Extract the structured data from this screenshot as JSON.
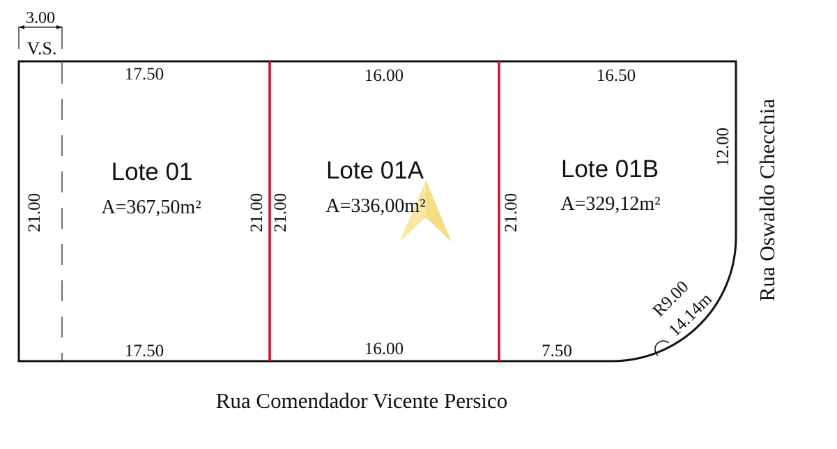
{
  "setback": {
    "width_label": "3.00",
    "label": "V.S."
  },
  "lots": [
    {
      "name": "Lote 01",
      "area": "A=367,50m²",
      "front": "17.50",
      "back": "17.50",
      "left_side": "21.00",
      "right_side": "21.00"
    },
    {
      "name": "Lote 01A",
      "area": "A=336,00m²",
      "front": "16.00",
      "back": "16.00",
      "left_side": "21.00",
      "right_side": "21.00"
    },
    {
      "name": "Lote 01B",
      "area": "A=329,12m²",
      "front": "16.50",
      "back": "7.50",
      "right_side": "12.00"
    }
  ],
  "curve": {
    "radius": "R9.00",
    "arc": "14.14m"
  },
  "streets": {
    "bottom": "Rua Comendador Vicente Persico",
    "right": "Rua Oswaldo Checchia"
  },
  "colors": {
    "outline": "#111111",
    "divider": "#c8102e",
    "watermark": "#f2d35c"
  }
}
